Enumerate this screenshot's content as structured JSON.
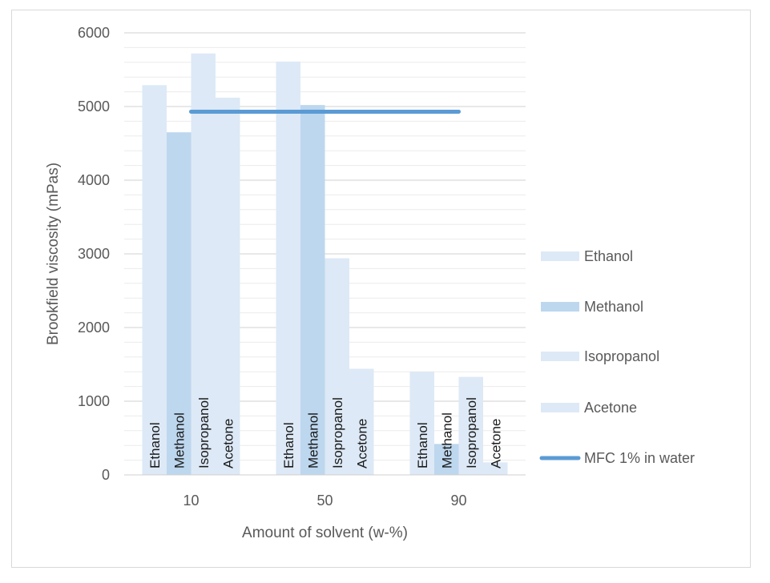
{
  "chart_data": {
    "type": "bar",
    "title": "",
    "xlabel": "Amount of solvent (w-%)",
    "ylabel": "Brookfield viscosity (mPas)",
    "ylim": [
      0,
      6000
    ],
    "yticks": [
      0,
      1000,
      2000,
      3000,
      4000,
      5000,
      6000
    ],
    "categories": [
      "10",
      "50",
      "90"
    ],
    "series": [
      {
        "name": "Ethanol",
        "values": [
          5290,
          5610,
          1400
        ],
        "color": "#dde9f6"
      },
      {
        "name": "Methanol",
        "values": [
          4650,
          5020,
          420
        ],
        "color": "#bdd7ee"
      },
      {
        "name": "Isopropanol",
        "values": [
          5720,
          2940,
          1330
        ],
        "color": "#dde9f6"
      },
      {
        "name": "Acetone",
        "values": [
          5120,
          1440,
          170
        ],
        "color": "#dde9f6"
      }
    ],
    "reference_line": {
      "name": "MFC 1% in water",
      "value": 4930,
      "color": "#5b9bd5"
    },
    "legend_position": "right",
    "grid": true
  }
}
